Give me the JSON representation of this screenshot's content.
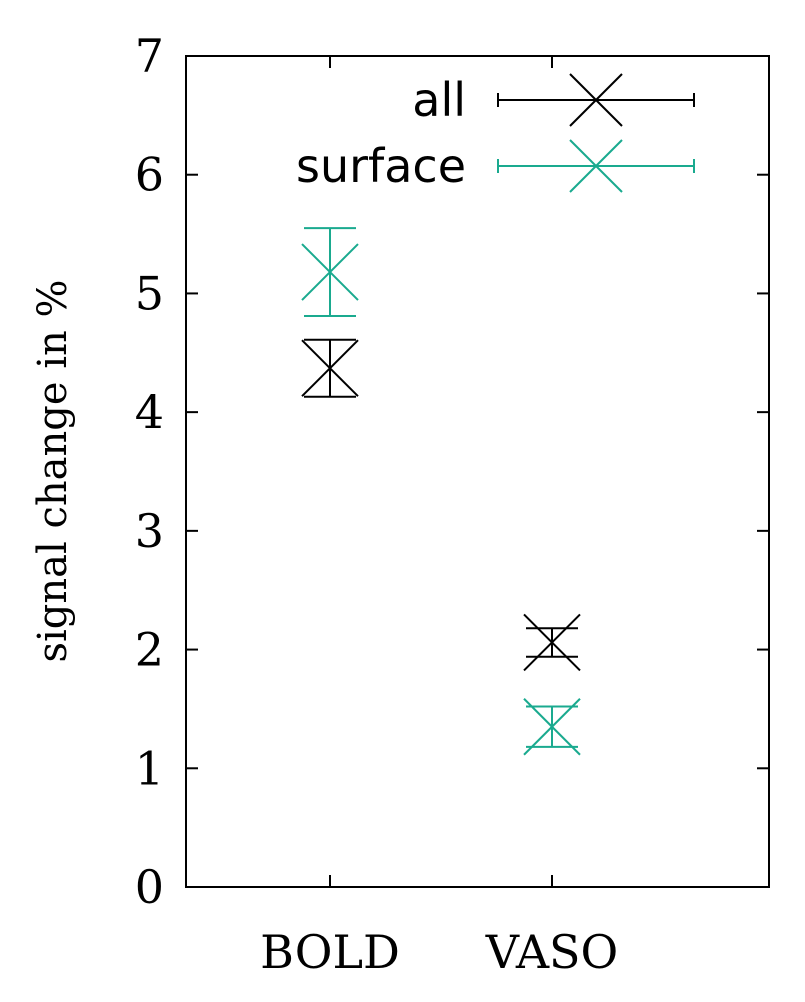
{
  "chart_data": {
    "type": "scatter",
    "ylabel": "signal change in %",
    "xlabel": "",
    "ylim": [
      0,
      7
    ],
    "yticks": [
      "0",
      "1",
      "2",
      "3",
      "4",
      "5",
      "6",
      "7"
    ],
    "categories": [
      "BOLD",
      "VASO"
    ],
    "grid": false,
    "legend": "top-right",
    "series": [
      {
        "name": "all",
        "color": "#000000",
        "values": [
          4.37,
          2.06
        ],
        "errors": [
          0.24,
          0.12
        ]
      },
      {
        "name": "surface",
        "color": "#1aaa8f",
        "values": [
          5.18,
          1.35
        ],
        "errors": [
          0.37,
          0.17
        ]
      }
    ]
  }
}
